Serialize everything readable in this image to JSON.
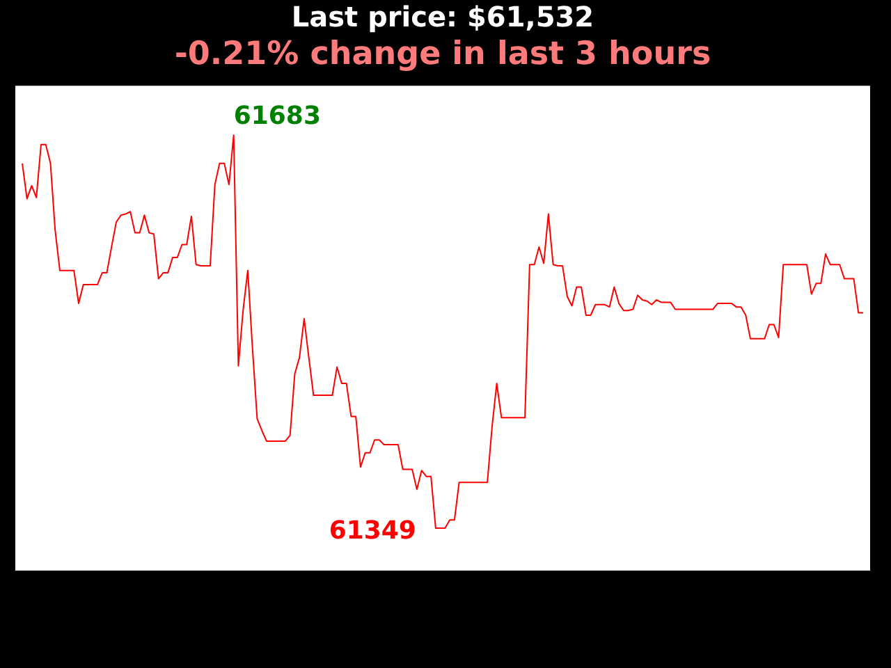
{
  "chart_data": {
    "type": "line",
    "title": "Last price: $61,532",
    "subtitle": "-0.21% change in last 3 hours",
    "categories": [
      null,
      null,
      null,
      null,
      null,
      null,
      null,
      null,
      null,
      null,
      null,
      null,
      null,
      null,
      null,
      null,
      null,
      null,
      null,
      null,
      null,
      null,
      null,
      null,
      null,
      null,
      null,
      null,
      null,
      null,
      null,
      null,
      null,
      null,
      null,
      null,
      null,
      null,
      null,
      null,
      null,
      null,
      null,
      null,
      null,
      null,
      null,
      null,
      null,
      null,
      null,
      null,
      null,
      null,
      null,
      null,
      null,
      null,
      null,
      null,
      null,
      null,
      null,
      null,
      null,
      null,
      null,
      null,
      null,
      null,
      null,
      null,
      null,
      null,
      null,
      null,
      null,
      null,
      null,
      null,
      null,
      null,
      null,
      null,
      null,
      null,
      null,
      null,
      null,
      null,
      null,
      null,
      null,
      null,
      null,
      null,
      null,
      null,
      null,
      null,
      null,
      null,
      null,
      null,
      null,
      null,
      null,
      null,
      null,
      null,
      null,
      null,
      null,
      null,
      null,
      null,
      null,
      null,
      null,
      null,
      null,
      null,
      null,
      null,
      null,
      null,
      null,
      null,
      null,
      null,
      null,
      null,
      null,
      null,
      null,
      null,
      null,
      null,
      null,
      null,
      null,
      null,
      null,
      null,
      null,
      null,
      null,
      null,
      null,
      null,
      null,
      null,
      null,
      null,
      null,
      null,
      null,
      null,
      null,
      null,
      null,
      null,
      null,
      null,
      null,
      null,
      null,
      null,
      null,
      null,
      null,
      null,
      null,
      null,
      null,
      null,
      null,
      null,
      null,
      null
    ],
    "series": [
      {
        "color": "#ff0000",
        "values": [
          61659,
          61629,
          61640,
          61630,
          61675,
          61675,
          61659,
          61602,
          61568,
          61568,
          61568,
          61568,
          61540,
          61556,
          61556,
          61556,
          61556,
          61566,
          61566,
          61588,
          61609,
          61615,
          61616,
          61618,
          61600,
          61600,
          61615,
          61600,
          61599,
          61561,
          61566,
          61566,
          61579,
          61579,
          61590,
          61590,
          61614,
          61573,
          61572,
          61572,
          61572,
          61641,
          61659,
          61659,
          61641,
          61683,
          61487,
          61534,
          61568,
          61502,
          61442,
          61432,
          61423,
          61423,
          61423,
          61423,
          61423,
          61428,
          61480,
          61494,
          61527,
          61494,
          61462,
          61462,
          61462,
          61462,
          61462,
          61486,
          61472,
          61472,
          61444,
          61444,
          61401,
          61413,
          61413,
          61424,
          61424,
          61420,
          61420,
          61420,
          61420,
          61399,
          61399,
          61399,
          61382,
          61398,
          61393,
          61393,
          61349,
          61349,
          61349,
          61356,
          61356,
          61388,
          61388,
          61388,
          61388,
          61388,
          61388,
          61388,
          61435,
          61472,
          61443,
          61443,
          61443,
          61443,
          61443,
          61443,
          61573,
          61573,
          61588,
          61574,
          61616,
          61573,
          61572,
          61572,
          61546,
          61538,
          61554,
          61554,
          61530,
          61530,
          61539,
          61539,
          61539,
          61537,
          61554,
          61540,
          61534,
          61534,
          61535,
          61547,
          61543,
          61542,
          61539,
          61543,
          61541,
          61541,
          61541,
          61535,
          61535,
          61535,
          61535,
          61535,
          61535,
          61535,
          61535,
          61535,
          61540,
          61540,
          61540,
          61540,
          61537,
          61537,
          61530,
          61510,
          61510,
          61510,
          61510,
          61522,
          61522,
          61511,
          61573,
          61573,
          61573,
          61573,
          61573,
          61573,
          61548,
          61557,
          61557,
          61582,
          61573,
          61573,
          61573,
          61561,
          61561,
          61561,
          61532,
          61532
        ],
        "value_labels": [
          null,
          null,
          null,
          null,
          null,
          null,
          null,
          null,
          null,
          null,
          null,
          null,
          null,
          null,
          null,
          null,
          null,
          null,
          null,
          null,
          null,
          null,
          null,
          null,
          null,
          null,
          null,
          null,
          null,
          null,
          null,
          null,
          null,
          null,
          null,
          null,
          null,
          null,
          null,
          null,
          null,
          null,
          null,
          null,
          null,
          "61683",
          null,
          null,
          null,
          null,
          null,
          null,
          null,
          null,
          null,
          null,
          null,
          null,
          null,
          null,
          null,
          null,
          null,
          null,
          null,
          null,
          null,
          null,
          null,
          null,
          null,
          null,
          null,
          null,
          null,
          null,
          null,
          null,
          null,
          null,
          null,
          null,
          null,
          null,
          null,
          null,
          null,
          null,
          "61349",
          null,
          null,
          null,
          null,
          null,
          null,
          null,
          null,
          null,
          null,
          null,
          null,
          null,
          null,
          null,
          null,
          null,
          null,
          null,
          null,
          null,
          null,
          null,
          null,
          null,
          null,
          null,
          null,
          null,
          null,
          null,
          null,
          null,
          null,
          null,
          null,
          null,
          null,
          null,
          null,
          null,
          null,
          null,
          null,
          null,
          null,
          null,
          null,
          null,
          null,
          null,
          null,
          null,
          null,
          null,
          null,
          null,
          null,
          null,
          null,
          null,
          null,
          null,
          null,
          null,
          null,
          null,
          null,
          null,
          null,
          null,
          null,
          null,
          null,
          null,
          null,
          null,
          null,
          null,
          null,
          null,
          null,
          null,
          null,
          null,
          null,
          null,
          null,
          null,
          null,
          null
        ]
      }
    ],
    "ylim": [
      61313,
      61725
    ],
    "tick_labels": false,
    "grid": false,
    "legend": false,
    "marker": "none",
    "line_style": "solid"
  }
}
